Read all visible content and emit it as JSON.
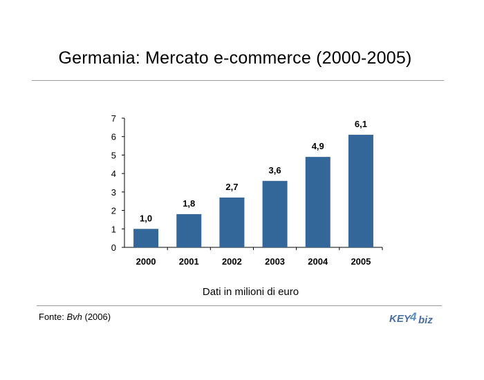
{
  "slide": {
    "title": "Germania: Mercato e-commerce (2000-2005)",
    "caption": "Dati in milioni di euro",
    "source_label": "Fonte: ",
    "source_name": "Bvh",
    "source_year": " (2006)",
    "logo_main": "KEY",
    "logo_digit": "4",
    "logo_suffix": "biz"
  },
  "colors": {
    "bar": "#336699",
    "logo_main": "#4a6fa0",
    "logo_accent": "#5a8fc8"
  },
  "chart_data": {
    "type": "bar",
    "categories": [
      "2000",
      "2001",
      "2002",
      "2003",
      "2004",
      "2005"
    ],
    "values": [
      1.0,
      1.8,
      2.7,
      3.6,
      4.9,
      6.1
    ],
    "value_labels": [
      "1,0",
      "1,8",
      "2,7",
      "3,6",
      "4,9",
      "6,1"
    ],
    "title": "",
    "xlabel": "",
    "ylabel": "",
    "ylim": [
      0,
      7
    ],
    "yticks": [
      "0",
      "1",
      "2",
      "3",
      "4",
      "5",
      "6",
      "7"
    ],
    "grid": false,
    "legend": "none"
  }
}
